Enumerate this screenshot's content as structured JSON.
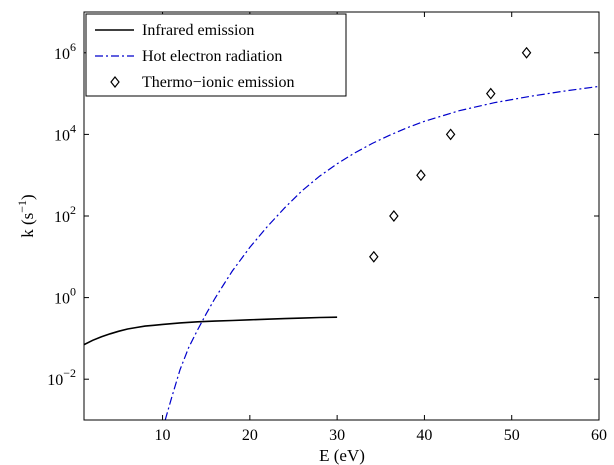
{
  "chart_data": {
    "type": "line",
    "title": "",
    "xlabel": "E (eV)",
    "ylabel_base": "k (s",
    "ylabel_sup": "−1",
    "ylabel_close": ")",
    "xlim": [
      1,
      60
    ],
    "ylim": [
      0.001,
      10000000
    ],
    "yscale": "log",
    "grid": false,
    "legend_position": "top-left",
    "xticks": [
      {
        "value": 10,
        "label": "10"
      },
      {
        "value": 20,
        "label": "20"
      },
      {
        "value": 30,
        "label": "30"
      },
      {
        "value": 40,
        "label": "40"
      },
      {
        "value": 50,
        "label": "50"
      },
      {
        "value": 60,
        "label": "60"
      }
    ],
    "yticks": [
      {
        "value": 0.01,
        "base": "10",
        "exp": "−2"
      },
      {
        "value": 1,
        "base": "10",
        "exp": "0"
      },
      {
        "value": 100,
        "base": "10",
        "exp": "2"
      },
      {
        "value": 10000,
        "base": "10",
        "exp": "4"
      },
      {
        "value": 1000000,
        "base": "10",
        "exp": "6"
      }
    ],
    "series": [
      {
        "name": "Infrared emission",
        "style": "solid",
        "color": "#000000",
        "x": [
          1,
          2,
          3,
          4,
          5,
          6,
          7,
          8,
          9,
          10,
          12,
          14,
          16,
          18,
          20,
          22,
          24,
          26,
          28,
          30
        ],
        "y": [
          0.07,
          0.09,
          0.11,
          0.13,
          0.15,
          0.17,
          0.185,
          0.2,
          0.21,
          0.22,
          0.24,
          0.255,
          0.265,
          0.275,
          0.285,
          0.295,
          0.305,
          0.315,
          0.325,
          0.33
        ]
      },
      {
        "name": "Hot electron radiation",
        "style": "dashdot",
        "color": "#0000cc",
        "x": [
          10.3,
          11,
          12,
          13,
          14,
          15,
          16,
          17,
          18,
          20,
          22,
          24,
          26,
          28,
          30,
          32,
          34,
          36,
          38,
          40,
          44,
          48,
          52,
          56,
          60
        ],
        "y": [
          0.001,
          0.0033,
          0.017,
          0.06,
          0.16,
          0.4,
          0.95,
          2.1,
          4.5,
          17,
          55,
          160,
          420,
          950,
          1900,
          3500,
          6000,
          9500,
          14500,
          21000,
          38000,
          60000,
          85000,
          115000,
          150000
        ]
      },
      {
        "name": "Thermo−ionic emission",
        "style": "markers",
        "marker": "diamond",
        "color": "#000000",
        "x": [
          34.2,
          36.5,
          39.6,
          43.0,
          47.6,
          51.7
        ],
        "y": [
          10,
          100,
          1000,
          10000,
          100000,
          1000000
        ]
      }
    ]
  }
}
